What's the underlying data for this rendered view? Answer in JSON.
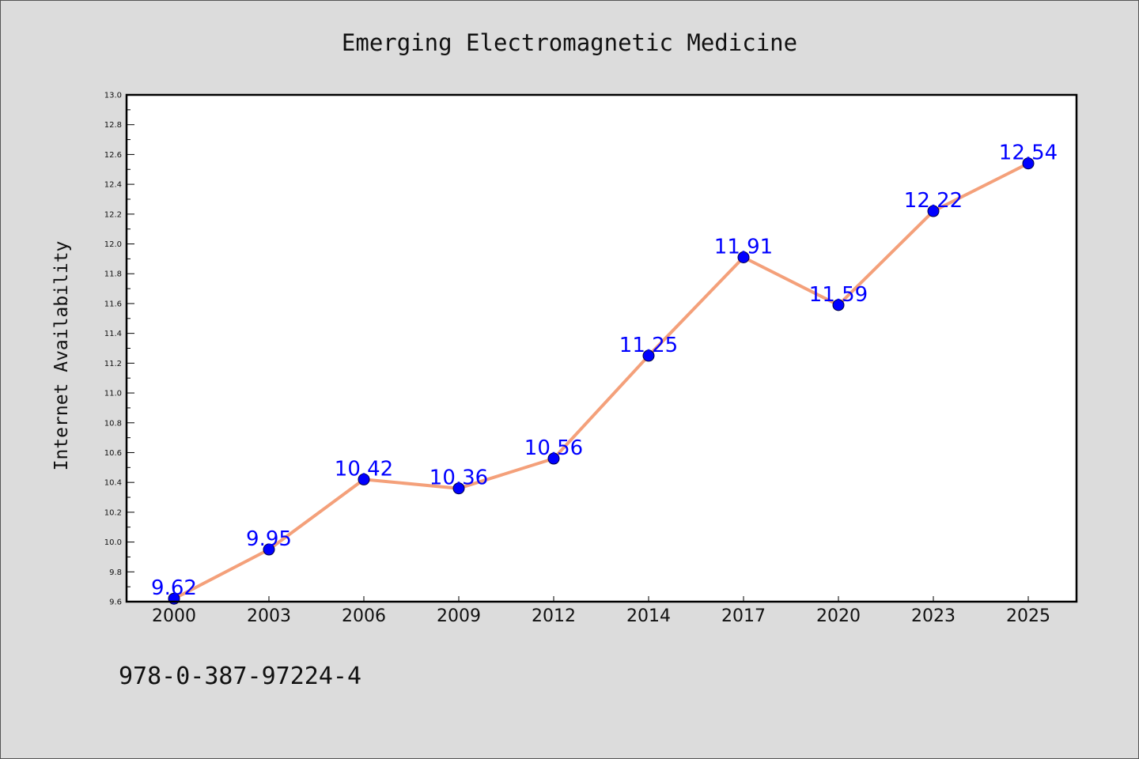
{
  "chart_data": {
    "type": "line",
    "title": "Emerging Electromagnetic Medicine",
    "xlabel": "",
    "ylabel": "Internet Availability",
    "categories": [
      "2000",
      "2003",
      "2006",
      "2009",
      "2012",
      "2014",
      "2017",
      "2020",
      "2023",
      "2025"
    ],
    "series": [
      {
        "values": [
          9.62,
          9.95,
          10.42,
          10.36,
          10.56,
          11.25,
          11.91,
          11.59,
          12.22,
          12.54
        ]
      }
    ],
    "data_labels": [
      "9.62",
      "9.95",
      "10.42",
      "10.36",
      "10.56",
      "11.25",
      "11.91",
      "11.59",
      "12.22",
      "12.54"
    ],
    "ylim": [
      9.6,
      13.0
    ],
    "yticks": [
      "9.6",
      "9.8",
      "10.0",
      "10.2",
      "10.4",
      "10.6",
      "10.8",
      "11.0",
      "11.2",
      "11.4",
      "11.6",
      "11.8",
      "12.0",
      "12.2",
      "12.4",
      "12.6",
      "12.8",
      "13.0"
    ],
    "grid": false,
    "legend": "none",
    "colors": {
      "line": "#f4a07a",
      "marker": "#0000ff",
      "marker_edge": "#000044",
      "data_label": "#0000ff",
      "plot_background": "#ffffff",
      "figure_background": "#dcdcdc"
    }
  },
  "annotation": "978-0-387-97224-4"
}
